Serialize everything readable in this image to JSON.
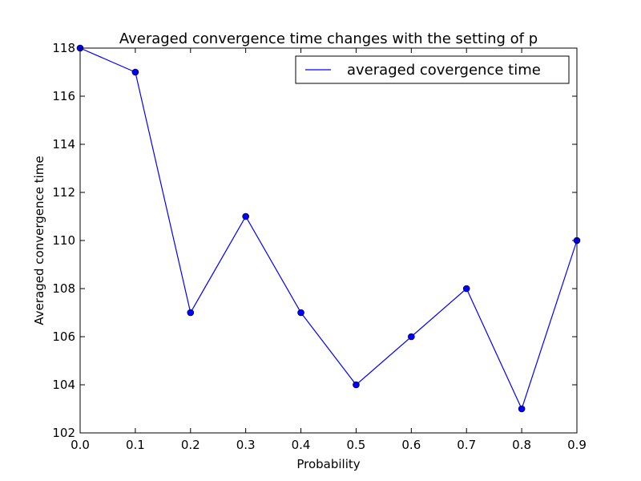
{
  "chart_data": {
    "type": "line",
    "title": "Averaged convergence time changes with the setting of p",
    "xlabel": "Probability",
    "ylabel": "Averaged convergence time",
    "xlim": [
      0.0,
      0.9
    ],
    "ylim": [
      102,
      118
    ],
    "xticks": [
      "0.0",
      "0.1",
      "0.2",
      "0.3",
      "0.4",
      "0.5",
      "0.6",
      "0.7",
      "0.8",
      "0.9"
    ],
    "yticks": [
      "102",
      "104",
      "106",
      "108",
      "110",
      "112",
      "114",
      "116",
      "118"
    ],
    "grid": false,
    "legend_position": "top-right",
    "series": [
      {
        "name": "averaged covergence time",
        "color": "#0000ff",
        "marker": "circle",
        "x": [
          0.0,
          0.1,
          0.2,
          0.3,
          0.4,
          0.5,
          0.6,
          0.7,
          0.8,
          0.9
        ],
        "y": [
          118,
          117,
          107,
          111,
          107,
          104,
          106,
          108,
          103,
          110
        ]
      }
    ]
  }
}
